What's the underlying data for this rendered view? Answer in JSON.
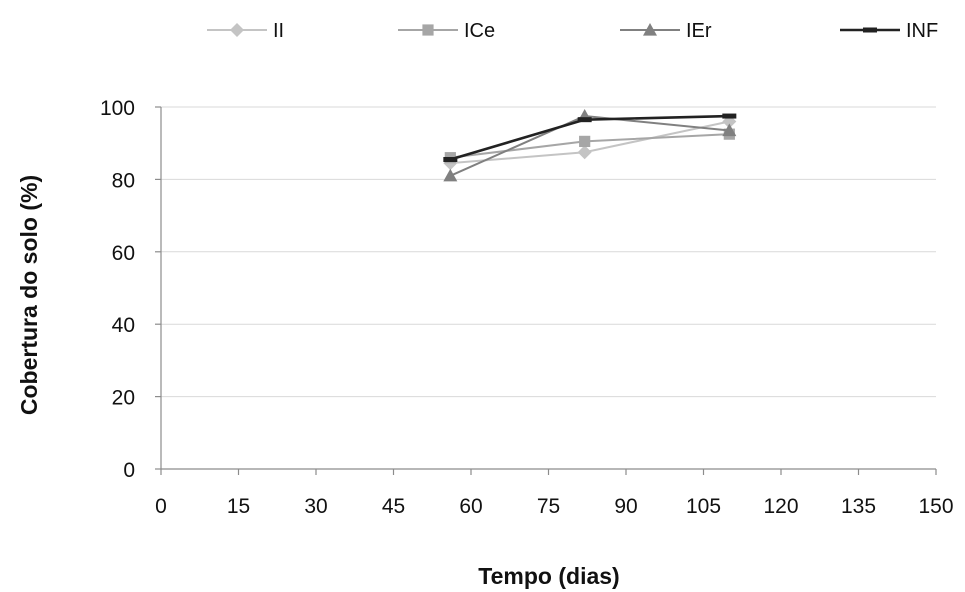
{
  "chart_data": {
    "type": "line",
    "xlabel": "Tempo (dias)",
    "ylabel": "Cobertura do solo (%)",
    "xlim": [
      0,
      150
    ],
    "ylim": [
      0,
      100
    ],
    "xticks": [
      0,
      15,
      30,
      45,
      60,
      75,
      90,
      105,
      120,
      135,
      150
    ],
    "yticks": [
      0,
      20,
      40,
      60,
      80,
      100
    ],
    "grid": "horizontal",
    "legend_position": "top",
    "series": [
      {
        "name": "II",
        "marker": "diamond",
        "color": "#c4c4c4",
        "x": [
          56,
          82,
          110
        ],
        "y": [
          84.5,
          87.5,
          96.0
        ]
      },
      {
        "name": "ICe",
        "marker": "square",
        "color": "#a6a6a6",
        "x": [
          56,
          82,
          110
        ],
        "y": [
          86.0,
          90.5,
          92.5
        ]
      },
      {
        "name": "IEr",
        "marker": "triangle",
        "color": "#808080",
        "x": [
          56,
          82,
          110
        ],
        "y": [
          81.0,
          97.5,
          93.5
        ]
      },
      {
        "name": "INF",
        "marker": "dash",
        "color": "#222222",
        "x": [
          56,
          82,
          110
        ],
        "y": [
          85.5,
          96.5,
          97.5
        ]
      }
    ]
  }
}
